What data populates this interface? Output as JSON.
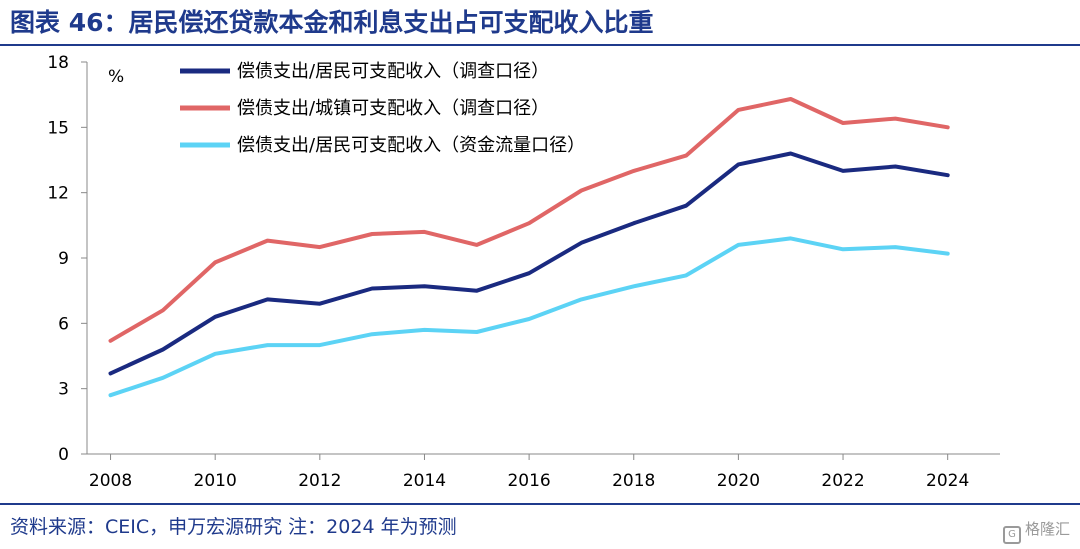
{
  "title": "图表 46：居民偿还贷款本金和利息支出占可支配收入比重",
  "source": "资料来源：CEIC，申万宏源研究  注：2024 年为预测",
  "watermark": "格隆汇",
  "watermark_icon": "G",
  "chart_data": {
    "type": "line",
    "unit": "%",
    "ylim": [
      0,
      18
    ],
    "yticks": [
      0,
      3,
      6,
      9,
      12,
      15,
      18
    ],
    "xlim": [
      2007.55,
      2025.0
    ],
    "xticks": [
      2008,
      2010,
      2012,
      2014,
      2016,
      2018,
      2020,
      2022,
      2024
    ],
    "legend_position": "top-left",
    "grid": false,
    "x": [
      2008,
      2009,
      2010,
      2011,
      2012,
      2013,
      2014,
      2015,
      2016,
      2017,
      2018,
      2019,
      2020,
      2021,
      2022,
      2023,
      2024
    ],
    "series": [
      {
        "name": "偿债支出/居民可支配收入（调查口径）",
        "color": "#1a2a80",
        "values": [
          3.7,
          4.8,
          6.3,
          7.1,
          6.9,
          7.6,
          7.7,
          7.5,
          8.3,
          9.7,
          10.6,
          11.4,
          13.3,
          13.8,
          13.0,
          13.2,
          12.8
        ]
      },
      {
        "name": "偿债支出/城镇可支配收入（调查口径）",
        "color": "#e06666",
        "values": [
          5.2,
          6.6,
          8.8,
          9.8,
          9.5,
          10.1,
          10.2,
          9.6,
          10.6,
          12.1,
          13.0,
          13.7,
          15.8,
          16.3,
          15.2,
          15.4,
          15.0
        ]
      },
      {
        "name": "偿债支出/居民可支配收入（资金流量口径）",
        "color": "#5cd3f5",
        "values": [
          2.7,
          3.5,
          4.6,
          5.0,
          5.0,
          5.5,
          5.7,
          5.6,
          6.2,
          7.1,
          7.7,
          8.2,
          9.6,
          9.9,
          9.4,
          9.5,
          9.2
        ]
      }
    ]
  }
}
